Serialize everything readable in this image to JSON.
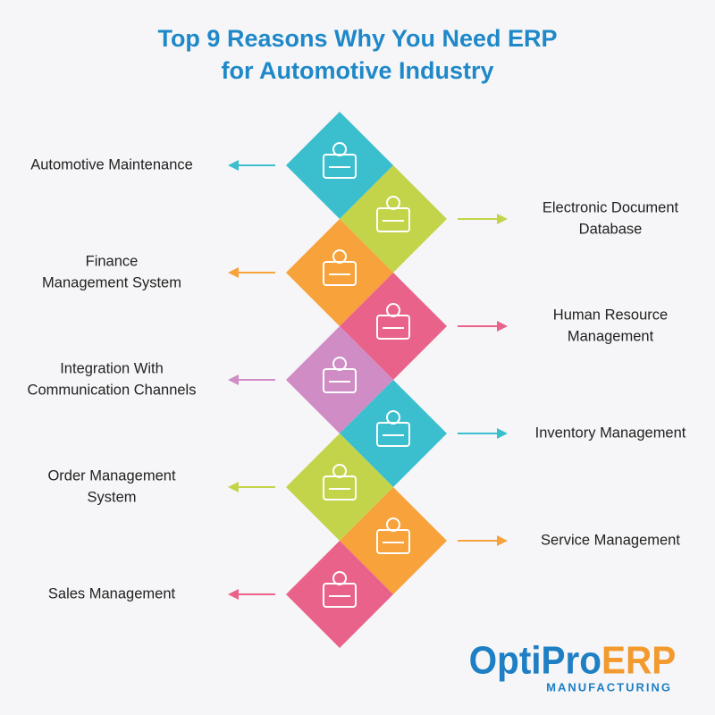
{
  "header": {
    "title": [
      "Top 9 Reasons Why You Need ERP",
      "for Automotive Industry"
    ]
  },
  "items": [
    {
      "label": [
        "Automotive Maintenance"
      ],
      "color": "#3bbfcf"
    },
    {
      "label": [
        "Electronic Document",
        "Database"
      ],
      "color": "#c3d44a"
    },
    {
      "label": [
        "Finance",
        "Management System"
      ],
      "color": "#f7a23b"
    },
    {
      "label": [
        "Human Resource",
        "Management"
      ],
      "color": "#e9628a"
    },
    {
      "label": [
        "Integration With",
        "Communication Channels"
      ],
      "color": "#d08cc4"
    },
    {
      "label": [
        "Inventory Management"
      ],
      "color": "#3bbfcf"
    },
    {
      "label": [
        "Order Management",
        "System"
      ],
      "color": "#c3d44a"
    },
    {
      "label": [
        "Service Management"
      ],
      "color": "#f7a23b"
    },
    {
      "label": [
        "Sales Management"
      ],
      "color": "#e9628a"
    }
  ],
  "logo": {
    "brand": "OptiPro",
    "suffix": "ERP",
    "tagline": "MANUFACTURING"
  }
}
